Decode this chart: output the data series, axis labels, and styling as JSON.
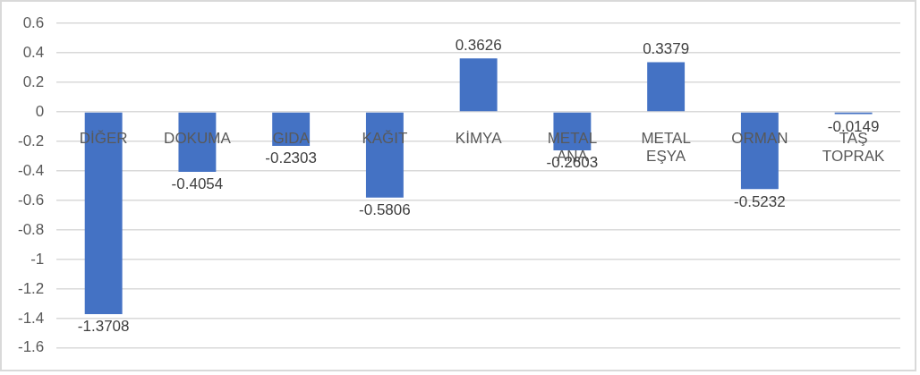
{
  "chart_data": {
    "type": "bar",
    "categories": [
      "DİĞER",
      "DOKUMA",
      "GIDA",
      "KAĞIT",
      "KİMYA",
      "METAL ANA",
      "METAL EŞYA",
      "ORMAN",
      "TAŞ TOPRAK"
    ],
    "values": [
      -1.3708,
      -0.4054,
      -0.2303,
      -0.5806,
      0.3626,
      -0.2603,
      0.3379,
      -0.5232,
      -0.0149
    ],
    "color": "#4472c4",
    "ylim": [
      -1.6,
      0.6
    ],
    "yticks": [
      -1.6,
      -1.4,
      -1.2,
      -1,
      -0.8,
      -0.6,
      -0.4,
      -0.2,
      0,
      0.2,
      0.4,
      0.6
    ],
    "grid": "y",
    "data_labels": true
  }
}
